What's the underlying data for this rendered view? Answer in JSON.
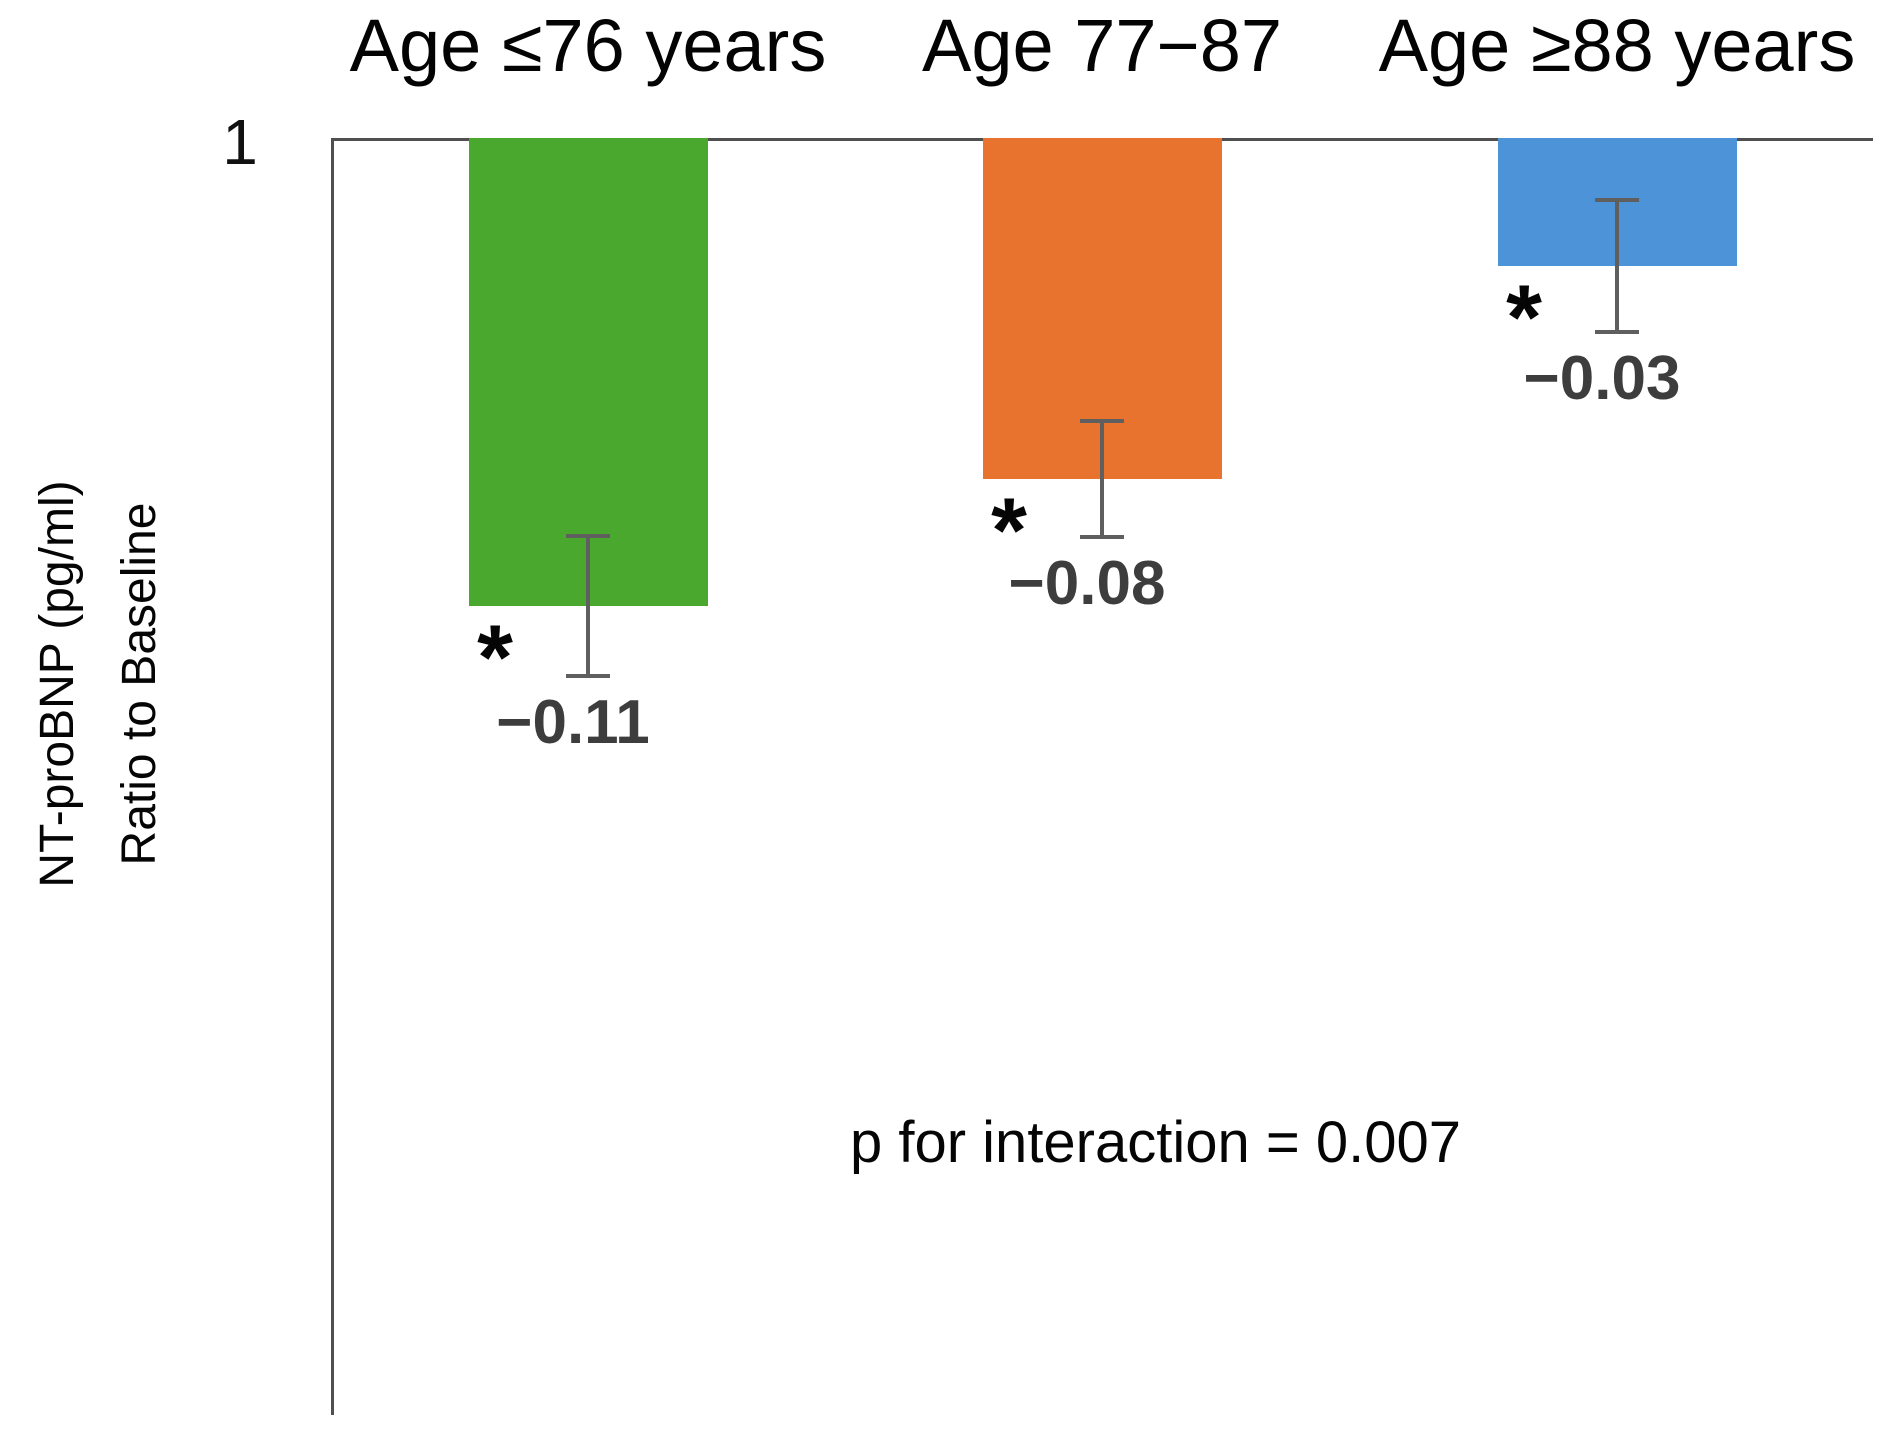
{
  "chart_data": {
    "type": "bar",
    "title": "",
    "categories": [
      "Age ≤76 years",
      "Age 77−87",
      "Age ≥88 years"
    ],
    "baseline_value": 1,
    "series": [
      {
        "name": "NT-proBNP ratio to baseline",
        "values": [
          0.89,
          0.92,
          0.97
        ],
        "change_labels": [
          "−0.11",
          "−0.08",
          "−0.03"
        ],
        "errors": [
          0.017,
          0.014,
          0.016
        ],
        "significance": [
          "*",
          "*",
          "*"
        ],
        "colors": [
          "#4AA82F",
          "#E8732F",
          "#4D93D8"
        ]
      }
    ],
    "y_tick_labels": [
      "1"
    ],
    "ylabel_line1": "NT-proBNP (pg/ml)",
    "ylabel_line2": "Ratio to Baseline",
    "ylim": [
      0.7,
      1.0
    ],
    "annotation": "p for interaction = 0.007",
    "grid": false,
    "legend": false,
    "bar_direction": "hanging-from-baseline-at-top"
  }
}
